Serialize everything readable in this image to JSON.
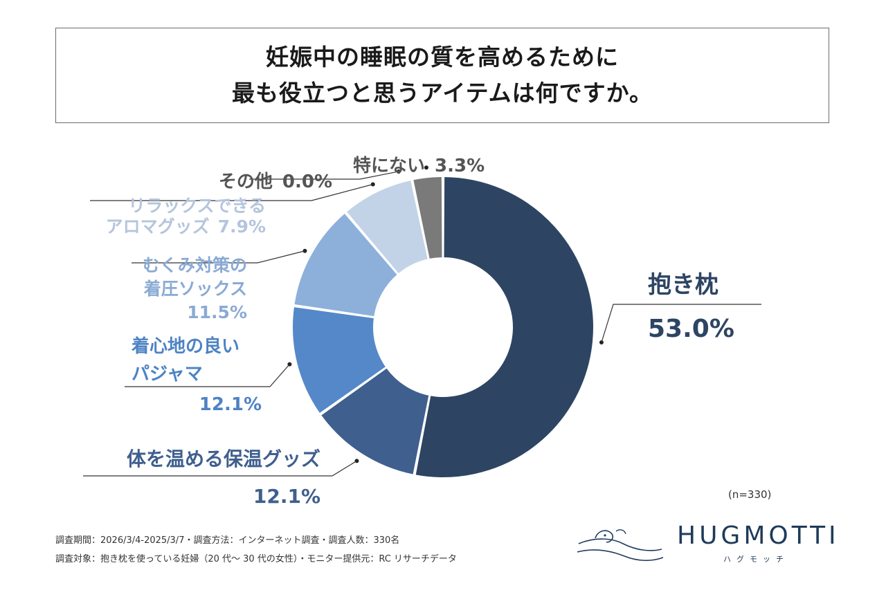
{
  "title": {
    "line1": "妊娠中の睡眠の質を高めるために",
    "line2": "最も役立つと思うアイテムは何ですか。"
  },
  "chart_data": {
    "type": "pie",
    "title": "妊娠中の睡眠の質を高めるために最も役立つと思うアイテムは何ですか。",
    "slices": [
      {
        "label_lines": [
          "抱き枕"
        ],
        "value": 53.0,
        "value_label": "53.0%",
        "color": "#2d4563",
        "text_color": "#2d4563"
      },
      {
        "label_lines": [
          "体を温める保温グッズ"
        ],
        "value": 12.1,
        "value_label": "12.1%",
        "color": "#3f5f8e",
        "text_color": "#3f5f8e"
      },
      {
        "label_lines": [
          "着心地の良い",
          "パジャマ"
        ],
        "value": 12.1,
        "value_label": "12.1%",
        "color": "#5588c8",
        "text_color": "#4d83c4"
      },
      {
        "label_lines": [
          "むくみ対策の",
          "着圧ソックス"
        ],
        "value": 11.5,
        "value_label": "11.5%",
        "color": "#8cb0da",
        "text_color": "#8aaad4"
      },
      {
        "label_lines": [
          "リラックスできる",
          "アロマグッズ"
        ],
        "value": 7.9,
        "value_label": "7.9%",
        "color": "#c2d3e7",
        "text_color": "#b4c5dc"
      },
      {
        "label_lines": [
          "その他"
        ],
        "value": 0.0,
        "value_label": "0.0%",
        "color": "#dfe3e8",
        "text_color": "#555555"
      },
      {
        "label_lines": [
          "特にない"
        ],
        "value": 3.3,
        "value_label": "3.3%",
        "color": "#7a7a7a",
        "text_color": "#555555"
      }
    ]
  },
  "note": "(n=330)",
  "footnotes": {
    "line1": "調査期間：2026/3/4-2025/3/7・調査方法：インターネット調査・調査人数：330名",
    "line2": "調査対象：抱き枕を使っている妊婦（20 代〜 30 代の女性）・モニター提供元：RC リサーチデータ"
  },
  "brand": {
    "name": "HUGMOTTI",
    "kana": "ハグモッチ",
    "color": "#1f3a5a"
  }
}
